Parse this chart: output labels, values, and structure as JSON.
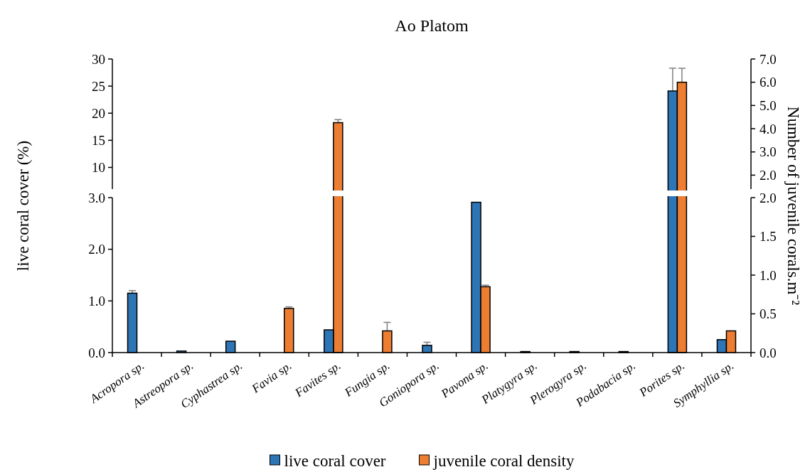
{
  "chart_data": [
    {
      "type": "bar",
      "title": "Ao Platom",
      "categories": [
        "Acropora sp.",
        "Astreopora sp.",
        "Cyphastrea sp.",
        "Favia sp.",
        "Favites sp.",
        "Fungia sp.",
        "Goniopora sp.",
        "Pavona sp.",
        "Platygyra sp.",
        "Plerogyra sp.",
        "Podabacia sp.",
        "Porites sp.",
        "Symphyllia sp."
      ],
      "series": [
        {
          "color": "#2e75b6",
          "values": [
            null,
            null,
            null,
            null,
            null,
            null,
            null,
            null,
            null,
            null,
            null,
            24.1,
            null
          ],
          "errors": [
            null,
            null,
            null,
            null,
            null,
            null,
            null,
            null,
            null,
            null,
            null,
            4.2,
            null
          ]
        },
        {
          "color": "#ed7d31",
          "axis": "y2",
          "values": [
            null,
            null,
            null,
            null,
            4.26,
            null,
            null,
            null,
            null,
            null,
            null,
            6.0,
            null
          ],
          "errors": [
            null,
            null,
            null,
            null,
            0.13,
            null,
            null,
            null,
            null,
            null,
            null,
            0.6,
            null
          ]
        }
      ],
      "ylim": [
        6,
        30
      ],
      "yticks": [
        10,
        15,
        20,
        25,
        30
      ],
      "y2lim": [
        1.4,
        7
      ],
      "y2ticks": [
        {
          "value": 2,
          "label": "2.0"
        },
        {
          "value": 3,
          "label": "3.0"
        },
        {
          "value": 4,
          "label": "4.0"
        },
        {
          "value": 5,
          "label": "5.0"
        },
        {
          "value": 6,
          "label": "6.0"
        },
        {
          "value": 7,
          "label": "7.0"
        }
      ],
      "tick_labels": "y",
      "grid": false
    },
    {
      "type": "bar",
      "categories": [
        "Acropora sp.",
        "Astreopora sp.",
        "Cyphastrea sp.",
        "Favia sp.",
        "Favites sp.",
        "Fungia sp.",
        "Goniopora sp.",
        "Pavona sp.",
        "Platygyra sp.",
        "Plerogyra sp.",
        "Podabacia sp.",
        "Porites sp.",
        "Symphyllia sp."
      ],
      "ylabel": "live coral cover (%)",
      "y2label": "Number of juvenile corals.m⁻²",
      "series": [
        {
          "name": "live coral cover",
          "color": "#2e75b6",
          "values": [
            1.15,
            0.03,
            0.22,
            null,
            0.44,
            null,
            0.14,
            2.91,
            0.02,
            0.02,
            0.02,
            null,
            0.25
          ],
          "errors": [
            0.05,
            null,
            null,
            null,
            null,
            null,
            0.06,
            null,
            null,
            null,
            null,
            null,
            null
          ]
        },
        {
          "name": "juvenile coral density",
          "color": "#ed7d31",
          "axis": "y2",
          "values": [
            null,
            null,
            null,
            0.57,
            null,
            0.28,
            null,
            0.85,
            null,
            null,
            null,
            null,
            0.28
          ],
          "errors": [
            null,
            null,
            null,
            0.02,
            null,
            0.11,
            null,
            0.02,
            null,
            null,
            null,
            null,
            null
          ]
        }
      ],
      "ylim": [
        0,
        3
      ],
      "yticks": [
        {
          "value": 0,
          "label": "0.0"
        },
        {
          "value": 1,
          "label": "1.0"
        },
        {
          "value": 2,
          "label": "2.0"
        },
        {
          "value": 3,
          "label": "3.0"
        }
      ],
      "y2lim": [
        0,
        2
      ],
      "y2ticks": [
        {
          "value": 0,
          "label": "0.0"
        },
        {
          "value": 0.5,
          "label": "0.5"
        },
        {
          "value": 1,
          "label": "1.0"
        },
        {
          "value": 1.5,
          "label": "1.5"
        },
        {
          "value": 2,
          "label": "2.0"
        }
      ],
      "legend": "bottom",
      "grid": false
    }
  ]
}
